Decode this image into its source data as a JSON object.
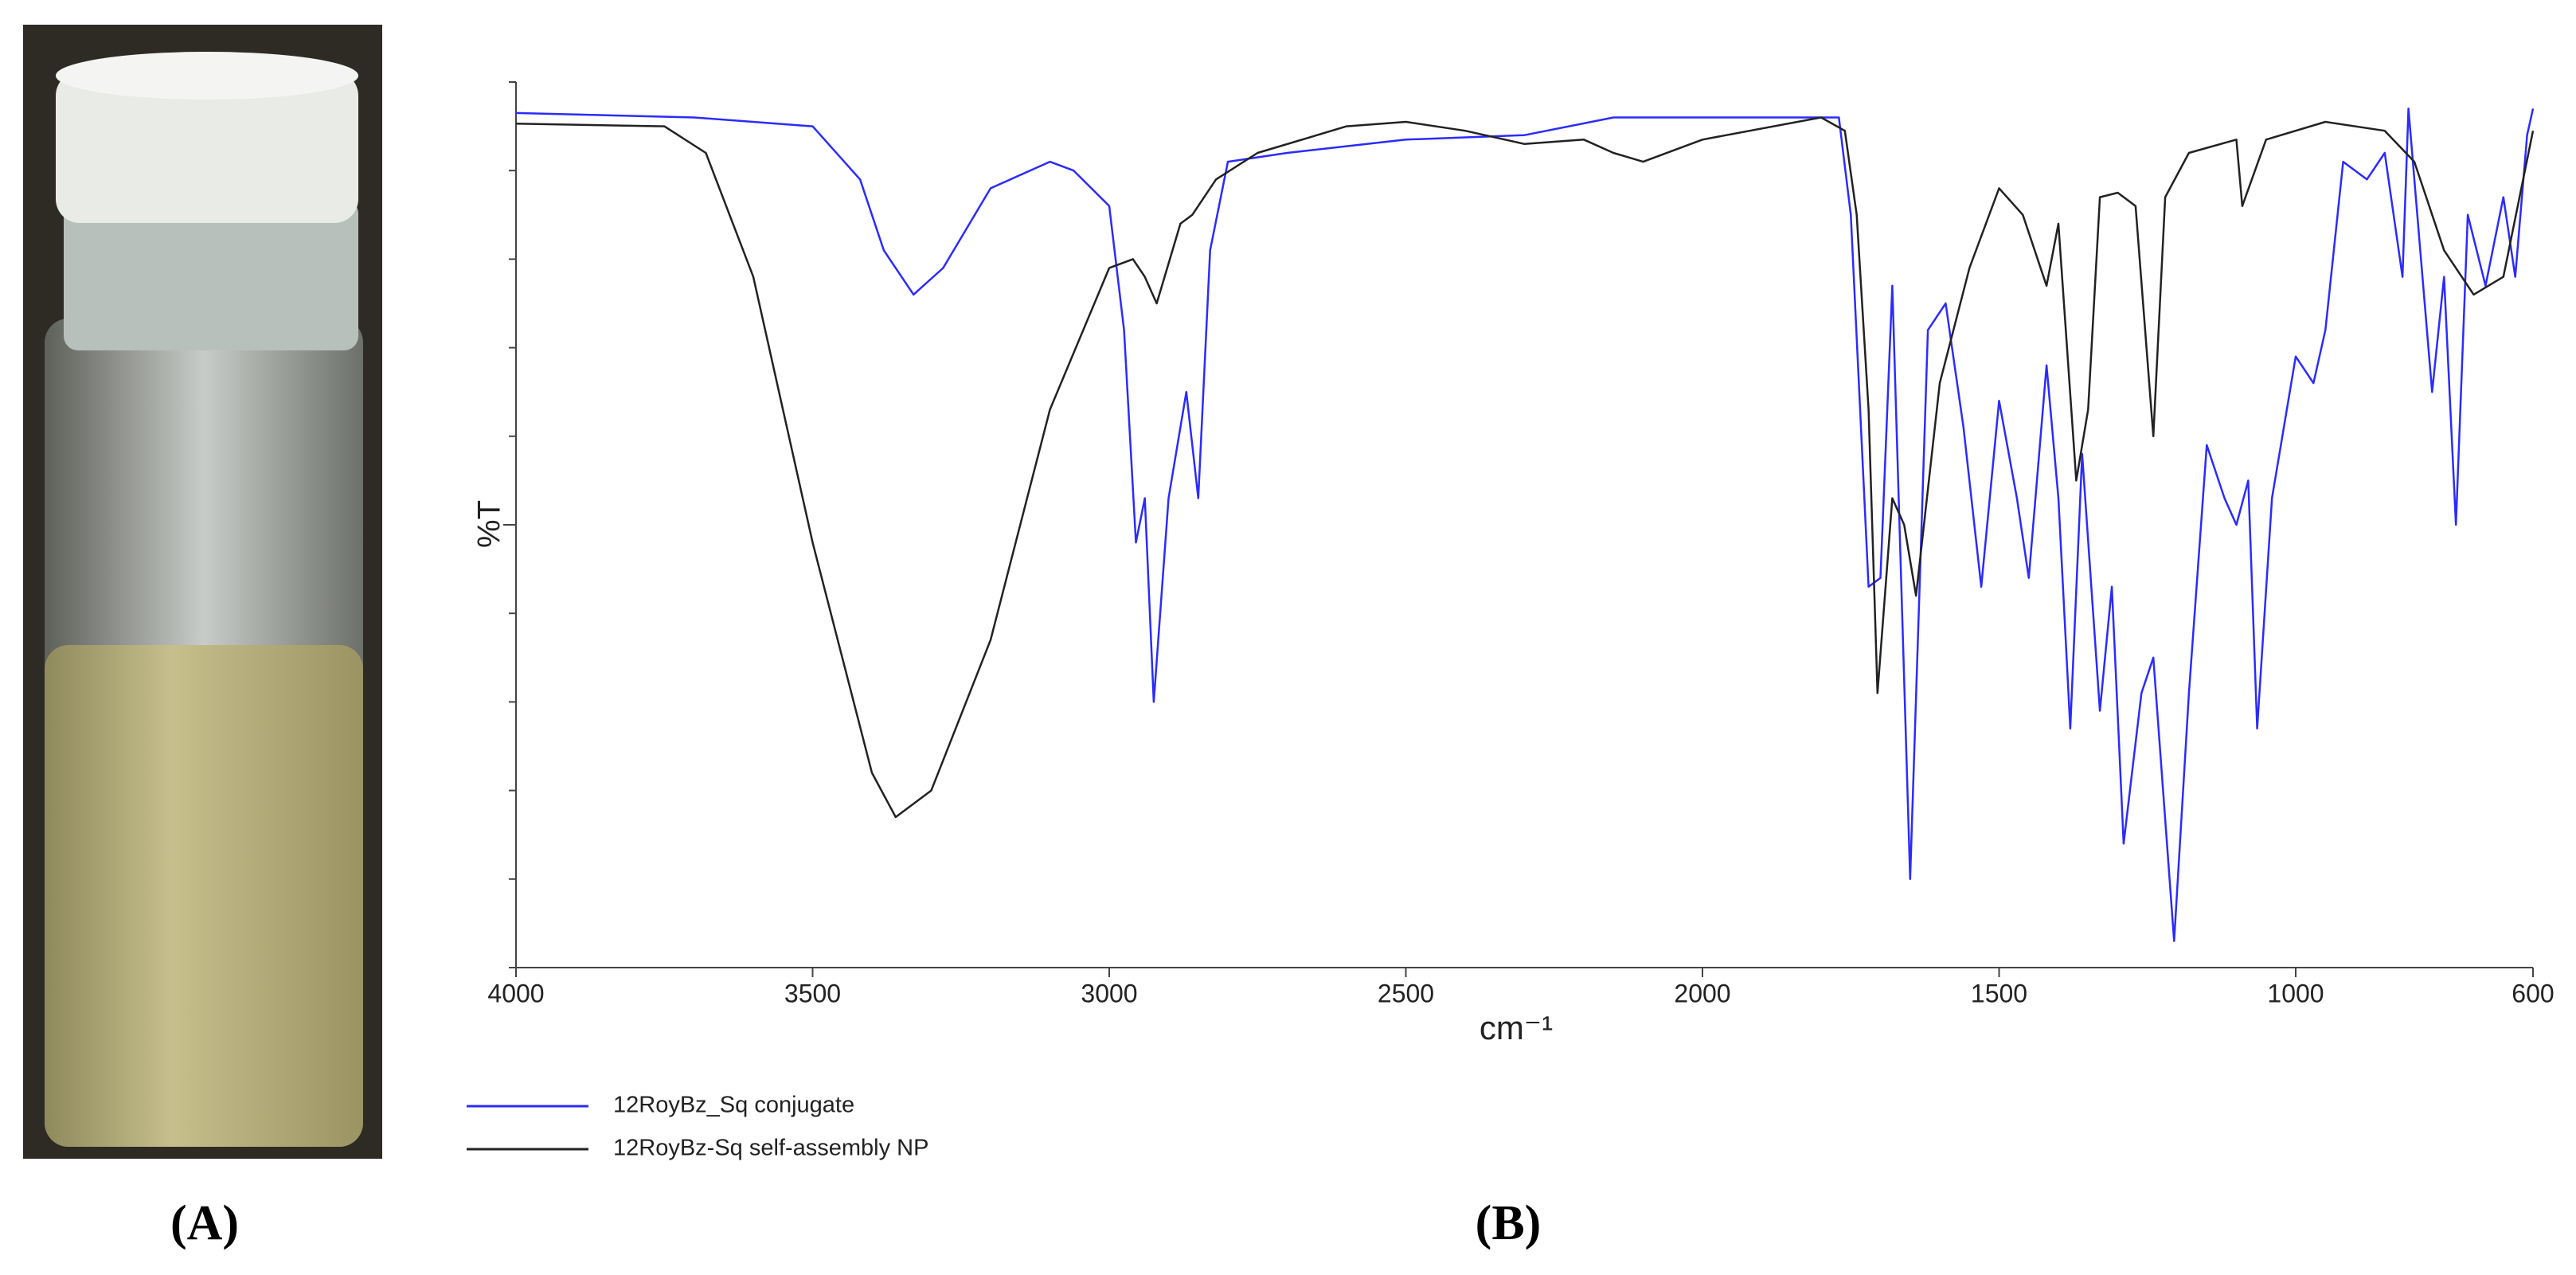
{
  "panel_labels": [
    "(A)",
    "(B)"
  ],
  "chart_data": {
    "type": "line",
    "x_label": "cm⁻¹",
    "y_label": "%T",
    "log_scale": false,
    "grid": false,
    "xlim": [
      4000,
      600
    ],
    "xticks": [
      4000,
      3500,
      3000,
      2500,
      2000,
      1500,
      1000,
      600
    ],
    "ylim": [
      0,
      100
    ],
    "legend": "bottom-left",
    "series": [
      {
        "name": "12RoyBz_Sq conjugate",
        "color": "#2b2bff",
        "x": [
          4000,
          3700,
          3500,
          3420,
          3380,
          3330,
          3280,
          3200,
          3100,
          3060,
          3000,
          2975,
          2955,
          2940,
          2925,
          2900,
          2870,
          2850,
          2830,
          2800,
          2700,
          2500,
          2300,
          2150,
          2000,
          1800,
          1770,
          1750,
          1720,
          1700,
          1680,
          1650,
          1620,
          1590,
          1560,
          1530,
          1500,
          1470,
          1450,
          1420,
          1400,
          1380,
          1360,
          1330,
          1310,
          1290,
          1260,
          1240,
          1205,
          1180,
          1150,
          1120,
          1100,
          1080,
          1065,
          1040,
          1000,
          970,
          950,
          920,
          880,
          850,
          820,
          810,
          790,
          770,
          750,
          730,
          710,
          680,
          650,
          630,
          610,
          600
        ],
        "values": [
          96.5,
          96,
          95,
          89,
          81,
          76,
          79,
          88,
          91,
          90,
          86,
          72,
          48,
          53,
          30,
          53,
          65,
          53,
          81,
          91,
          92,
          93.5,
          94,
          96,
          96,
          96,
          96,
          85,
          43,
          44,
          77,
          10,
          72,
          75,
          61,
          43,
          64,
          53,
          44,
          68,
          53,
          27,
          58,
          29,
          43,
          14,
          31,
          35,
          3,
          31,
          59,
          53,
          50,
          55,
          27,
          53,
          69,
          66,
          72,
          91,
          89,
          92,
          78,
          97,
          81,
          65,
          78,
          50,
          85,
          77,
          87,
          78,
          94,
          97
        ]
      },
      {
        "name": "12RoyBz-Sq self-assembly NP",
        "color": "#222222",
        "x": [
          4000,
          3750,
          3680,
          3600,
          3500,
          3400,
          3360,
          3300,
          3200,
          3100,
          3000,
          2960,
          2940,
          2920,
          2880,
          2860,
          2820,
          2750,
          2600,
          2500,
          2400,
          2300,
          2200,
          2150,
          2100,
          2000,
          1800,
          1760,
          1740,
          1720,
          1705,
          1680,
          1660,
          1640,
          1600,
          1550,
          1500,
          1460,
          1420,
          1400,
          1370,
          1350,
          1330,
          1300,
          1270,
          1240,
          1220,
          1180,
          1100,
          1090,
          1050,
          950,
          850,
          800,
          750,
          700,
          650,
          600
        ],
        "values": [
          95.3,
          95,
          92,
          78,
          48,
          22,
          17,
          20,
          37,
          63,
          79,
          80,
          78,
          75,
          84,
          85,
          89,
          92,
          95,
          95.5,
          94.5,
          93,
          93.5,
          92,
          91,
          93.5,
          96,
          94.5,
          85,
          63,
          31,
          53,
          50,
          42,
          66,
          79,
          88,
          85,
          77,
          84,
          55,
          63,
          87,
          87.5,
          86,
          60,
          87,
          92,
          93.5,
          86,
          93.5,
          95.5,
          94.5,
          91,
          81,
          76,
          78,
          94.5
        ]
      }
    ]
  }
}
